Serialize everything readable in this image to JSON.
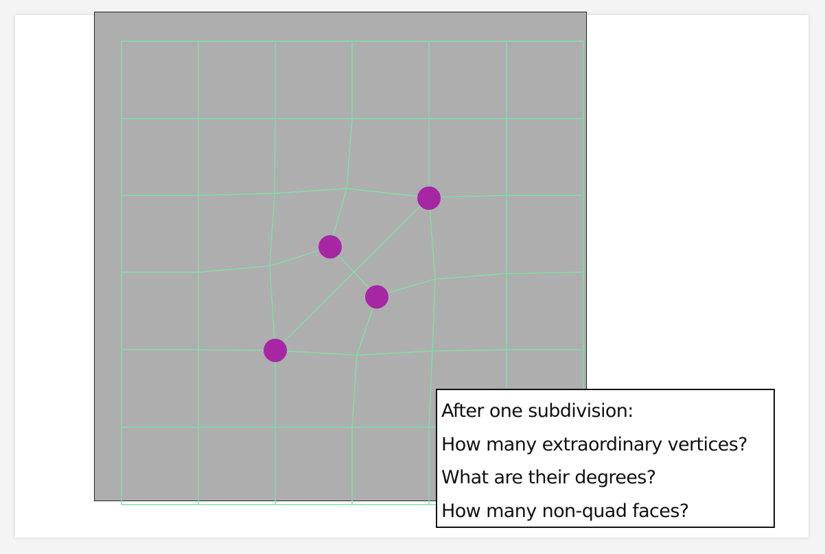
{
  "slide": {
    "callout": {
      "lines": [
        "After one subdivision:",
        "How many extraordinary vertices?",
        "What are their degrees?",
        "How many non-quad faces?"
      ]
    }
  },
  "mesh": {
    "colors": {
      "background": "#aeaeae",
      "edge": "#7fe0a8",
      "vertex": "#a626a4"
    },
    "extraordinary_vertex_count": 4
  }
}
